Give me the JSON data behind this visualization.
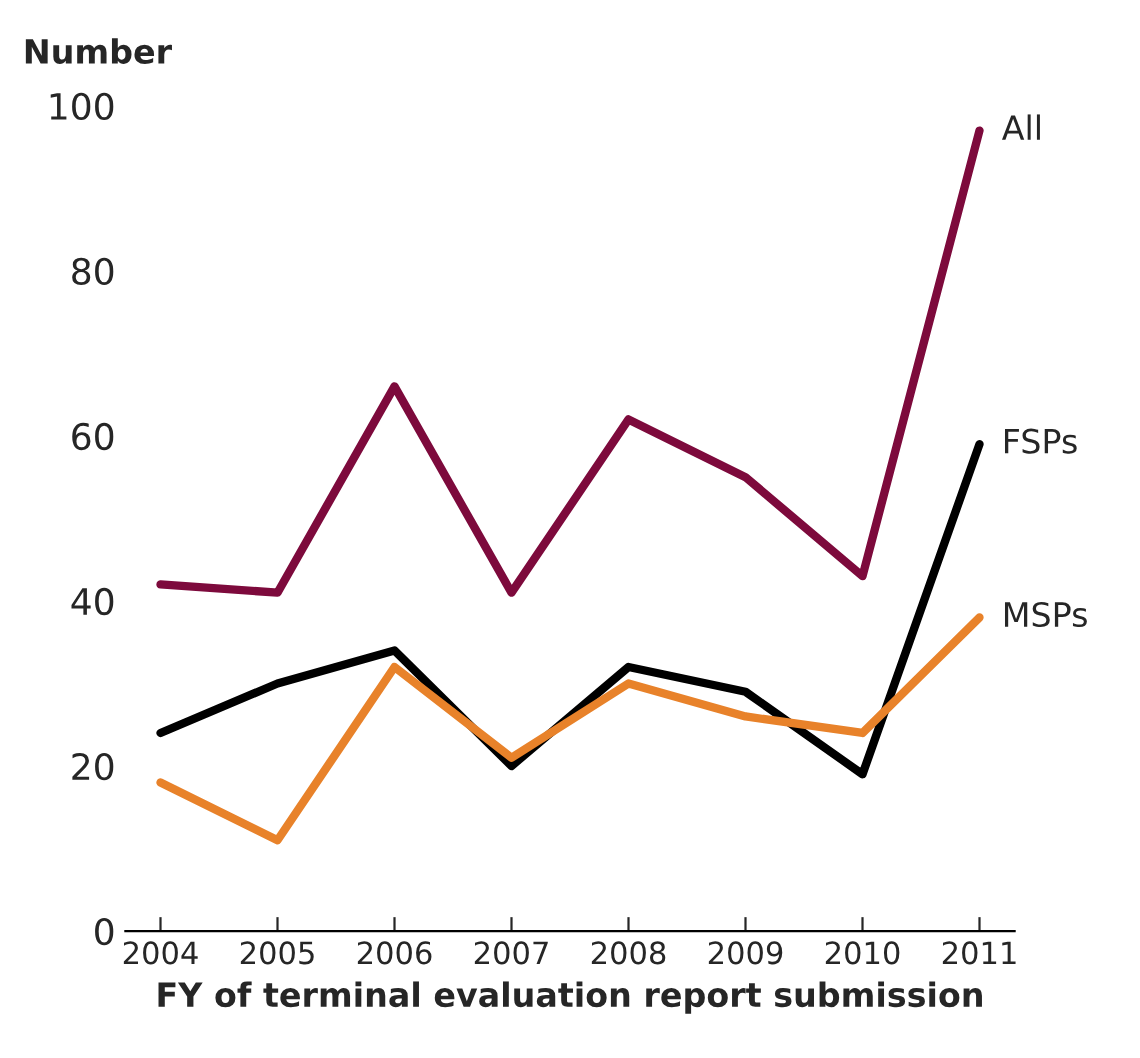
{
  "chart_data": {
    "type": "line",
    "ylabel": "Number",
    "xlabel": "FY of terminal evaluation report submission",
    "categories": [
      "2004",
      "2005",
      "2006",
      "2007",
      "2008",
      "2009",
      "2010",
      "2011"
    ],
    "series": [
      {
        "name": "All",
        "color": "#7d0a3c",
        "values": [
          42,
          41,
          66,
          41,
          62,
          55,
          43,
          97
        ]
      },
      {
        "name": "FSPs",
        "color": "#000000",
        "values": [
          24,
          30,
          34,
          20,
          32,
          29,
          19,
          59
        ]
      },
      {
        "name": "MSPs",
        "color": "#e8822a",
        "values": [
          18,
          11,
          32,
          21,
          30,
          26,
          24,
          38
        ]
      }
    ],
    "ylim": [
      0,
      100
    ],
    "yticks": [
      0,
      20,
      40,
      60,
      80,
      100
    ],
    "grid": false,
    "legend": false,
    "marker": "none",
    "line_style": "solid"
  }
}
